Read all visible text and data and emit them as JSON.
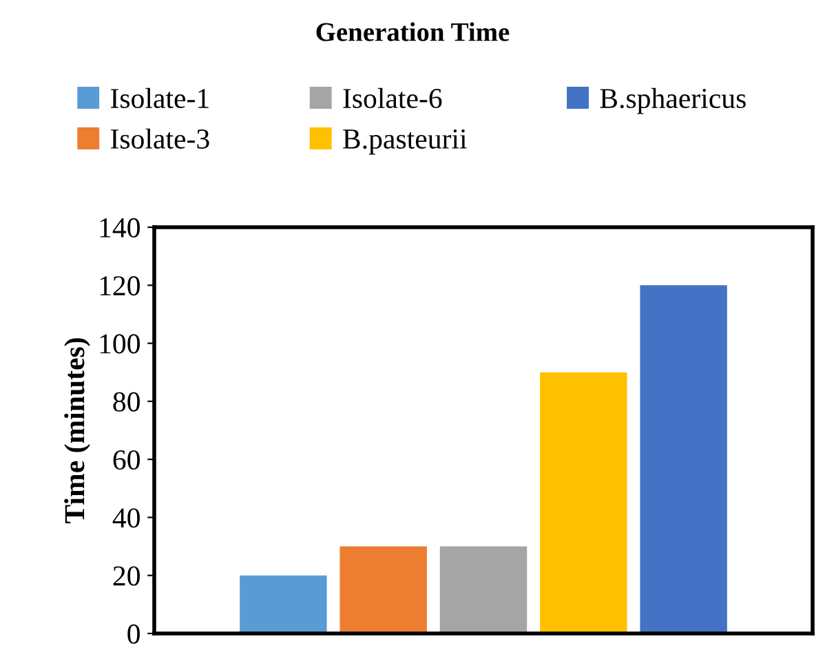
{
  "chart_data": {
    "type": "bar",
    "title": "Generation Time",
    "ylabel": "Time (minutes)",
    "categories": [
      null
    ],
    "series": [
      {
        "name": "Isolate-1",
        "color": "#5b9bd5",
        "values": [
          20
        ]
      },
      {
        "name": "Isolate-3",
        "color": "#ed7d31",
        "values": [
          30
        ]
      },
      {
        "name": "Isolate-6",
        "color": "#a5a5a5",
        "values": [
          30
        ]
      },
      {
        "name": "B.pasteurii",
        "color": "#ffc000",
        "values": [
          90
        ]
      },
      {
        "name": "B.sphaericus",
        "color": "#4472c4",
        "values": [
          120
        ]
      }
    ],
    "ylim": [
      0,
      140
    ],
    "yticks": [
      0,
      20,
      40,
      60,
      80,
      100,
      120,
      140
    ],
    "grid": false,
    "legend": "top"
  }
}
